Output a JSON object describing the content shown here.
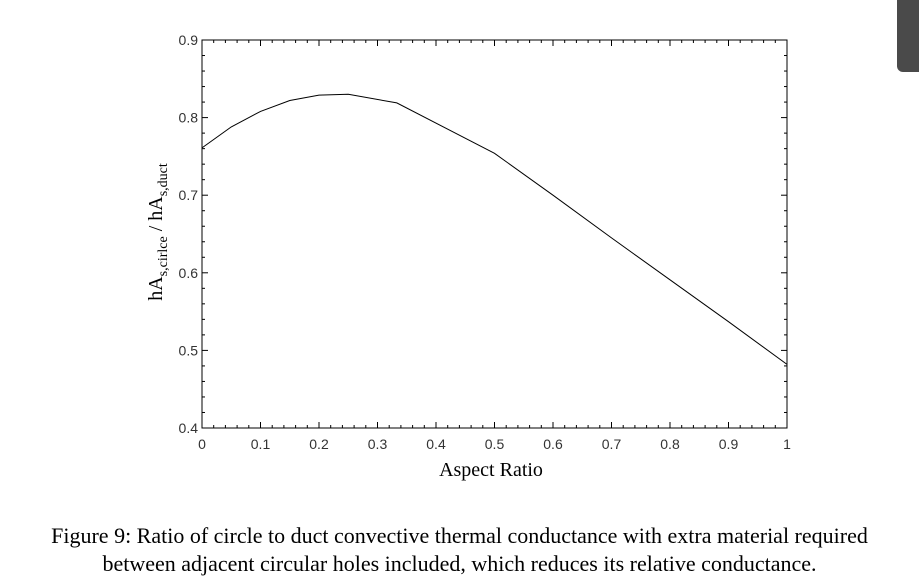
{
  "chart_data": {
    "type": "line",
    "xlabel": "Aspect Ratio",
    "ylabel": {
      "base1": "hA",
      "sub1": "s,cirlce",
      "separator": " / ",
      "base2": "hA",
      "sub2": "s,duct"
    },
    "xlim": [
      0,
      1
    ],
    "ylim": [
      0.4,
      0.9
    ],
    "xticks": [
      "0",
      "0.1",
      "0.2",
      "0.3",
      "0.4",
      "0.5",
      "0.6",
      "0.7",
      "0.8",
      "0.9",
      "1"
    ],
    "yticks": [
      "0.4",
      "0.5",
      "0.6",
      "0.7",
      "0.8",
      "0.9"
    ],
    "grid": false,
    "series": [
      {
        "x": [
          0,
          0.05,
          0.1,
          0.15,
          0.2,
          0.25,
          0.333,
          0.5,
          0.6,
          0.7,
          0.8,
          0.9,
          1.0
        ],
        "y": [
          0.761,
          0.788,
          0.808,
          0.822,
          0.829,
          0.83,
          0.819,
          0.754,
          0.7,
          0.645,
          0.591,
          0.537,
          0.482
        ]
      }
    ]
  },
  "caption": {
    "line1": "Figure 9: Ratio of circle to duct convective thermal conductance with extra material required",
    "line2": "between adjacent circular holes included, which reduces its relative conductance."
  }
}
